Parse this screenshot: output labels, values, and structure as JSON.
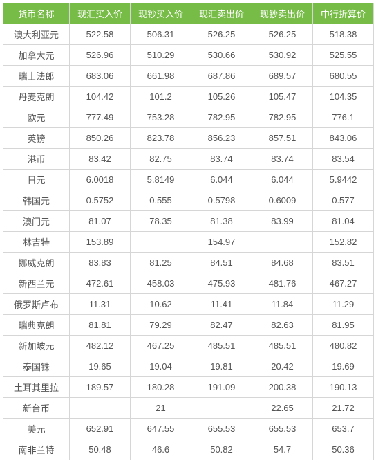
{
  "table": {
    "header_bg": "#77bc47",
    "header_fg": "#ffffff",
    "cell_fg": "#555555",
    "border_color": "#d6d6d6",
    "font_size": 13,
    "columns": [
      "货币名称",
      "现汇买入价",
      "现钞买入价",
      "现汇卖出价",
      "现钞卖出价",
      "中行折算价"
    ],
    "rows": [
      [
        "澳大利亚元",
        "522.58",
        "506.31",
        "526.25",
        "526.25",
        "518.38"
      ],
      [
        "加拿大元",
        "526.96",
        "510.29",
        "530.66",
        "530.92",
        "525.55"
      ],
      [
        "瑞士法郎",
        "683.06",
        "661.98",
        "687.86",
        "689.57",
        "680.55"
      ],
      [
        "丹麦克朗",
        "104.42",
        "101.2",
        "105.26",
        "105.47",
        "104.35"
      ],
      [
        "欧元",
        "777.49",
        "753.28",
        "782.95",
        "782.95",
        "776.1"
      ],
      [
        "英镑",
        "850.26",
        "823.78",
        "856.23",
        "857.51",
        "843.06"
      ],
      [
        "港币",
        "83.42",
        "82.75",
        "83.74",
        "83.74",
        "83.54"
      ],
      [
        "日元",
        "6.0018",
        "5.8149",
        "6.044",
        "6.044",
        "5.9442"
      ],
      [
        "韩国元",
        "0.5752",
        "0.555",
        "0.5798",
        "0.6009",
        "0.577"
      ],
      [
        "澳门元",
        "81.07",
        "78.35",
        "81.38",
        "83.99",
        "81.04"
      ],
      [
        "林吉特",
        "153.89",
        "",
        "154.97",
        "",
        "152.82"
      ],
      [
        "挪威克朗",
        "83.83",
        "81.25",
        "84.51",
        "84.68",
        "83.51"
      ],
      [
        "新西兰元",
        "472.61",
        "458.03",
        "475.93",
        "481.76",
        "467.27"
      ],
      [
        "俄罗斯卢布",
        "11.31",
        "10.62",
        "11.41",
        "11.84",
        "11.29"
      ],
      [
        "瑞典克朗",
        "81.81",
        "79.29",
        "82.47",
        "82.63",
        "81.95"
      ],
      [
        "新加坡元",
        "482.12",
        "467.25",
        "485.51",
        "485.51",
        "480.82"
      ],
      [
        "泰国铢",
        "19.65",
        "19.04",
        "19.81",
        "20.42",
        "19.69"
      ],
      [
        "土耳其里拉",
        "189.57",
        "180.28",
        "191.09",
        "200.38",
        "190.13"
      ],
      [
        "新台币",
        "",
        "21",
        "",
        "22.65",
        "21.72"
      ],
      [
        "美元",
        "652.91",
        "647.55",
        "655.53",
        "655.53",
        "653.7"
      ],
      [
        "南非兰特",
        "50.48",
        "46.6",
        "50.82",
        "54.7",
        "50.36"
      ]
    ]
  }
}
